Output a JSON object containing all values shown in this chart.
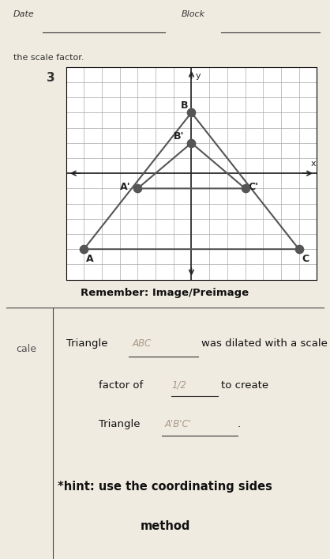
{
  "problem_number": "3",
  "grid_range": [
    -7,
    7
  ],
  "grid_ticks": [
    -6,
    -5,
    -4,
    -3,
    -2,
    -1,
    0,
    1,
    2,
    3,
    4,
    5,
    6
  ],
  "triangle_ABC": {
    "A": [
      -6,
      -5
    ],
    "B": [
      0,
      4
    ],
    "C": [
      6,
      -5
    ]
  },
  "triangle_A1B1C1": {
    "A1": [
      -3,
      -1
    ],
    "B1": [
      0,
      2
    ],
    "C1": [
      3,
      -1
    ]
  },
  "triangle_color": "#555555",
  "point_color": "#555555",
  "point_size": 55,
  "label_fontsize": 9,
  "remember_text": "Remember: Image/Preimage",
  "hint_text": "*hint: use the coordinating sides",
  "hint_text2": "method",
  "bg_color": "#f0ebe0",
  "grid_color": "#aaaaaa",
  "axis_color": "#222222"
}
